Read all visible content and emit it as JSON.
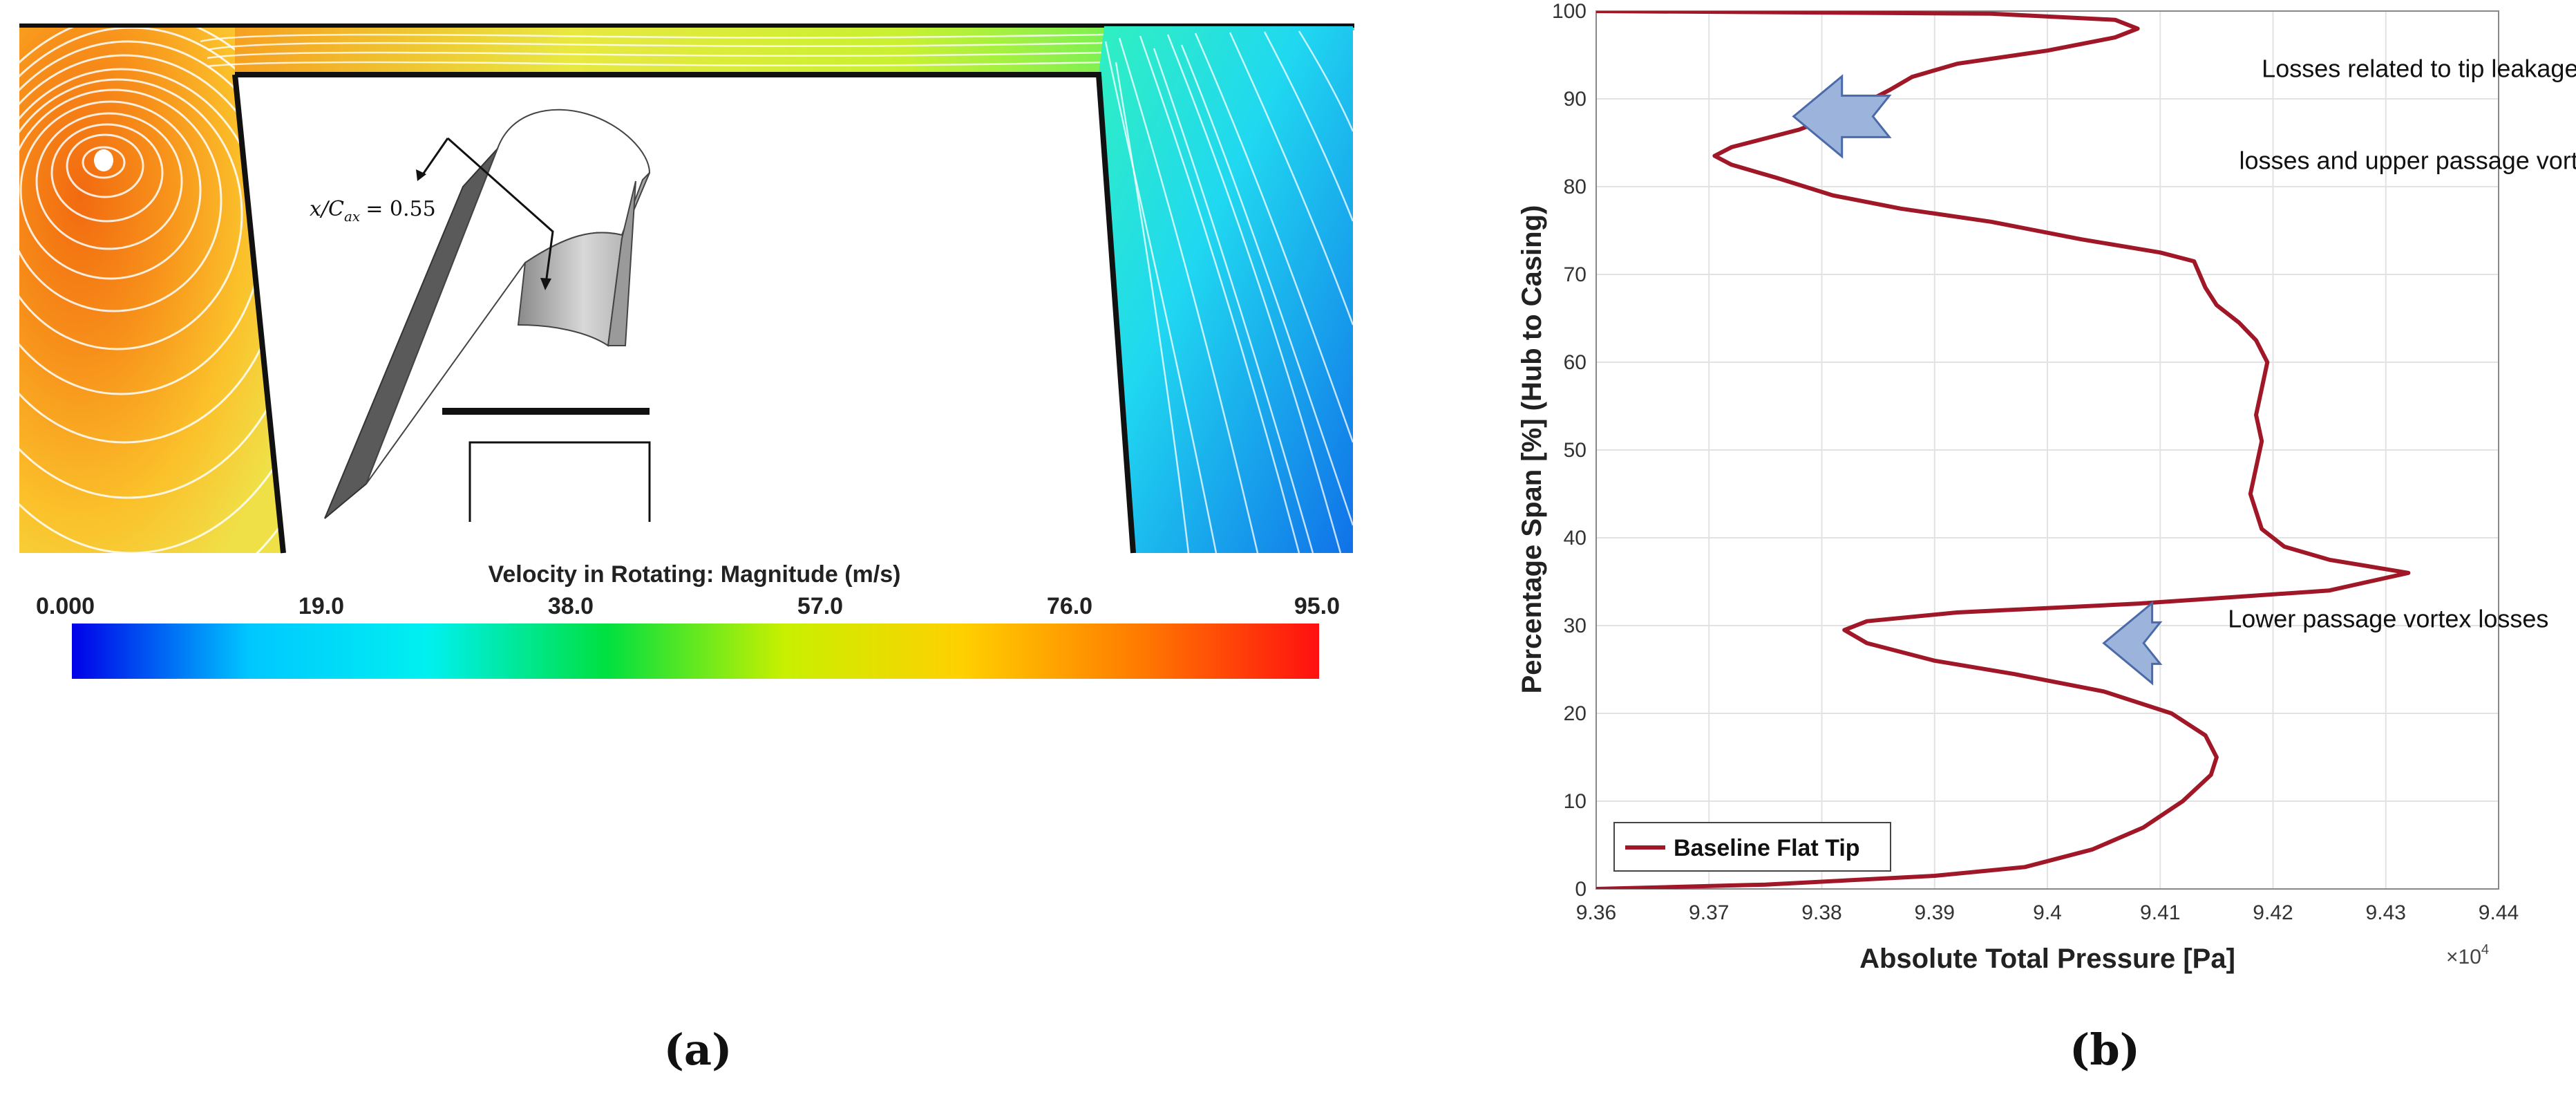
{
  "panel_a": {
    "label": "(a)",
    "inset_annotation": "x/C",
    "inset_annotation_sub": "ax",
    "inset_annotation_value": "= 0.55",
    "colorbar": {
      "title": "Velocity in Rotating: Magnitude (m/s)",
      "ticks": [
        "0.000",
        "19.0",
        "38.0",
        "57.0",
        "76.0",
        "95.0"
      ],
      "colors": [
        "#0000e8",
        "#00c8ff",
        "#00f0f0",
        "#00e040",
        "#c8f000",
        "#ffd000",
        "#ff7a00",
        "#ff1010"
      ]
    }
  },
  "panel_b": {
    "label": "(b)"
  },
  "chart_data": {
    "type": "line",
    "xlabel": "Absolute Total Pressure [Pa]",
    "ylabel": "Percentage Span [%] (Hub to Casing)",
    "x_multiplier": "×10",
    "x_multiplier_exp": "4",
    "xlim": [
      9.36,
      9.44
    ],
    "ylim": [
      0,
      100
    ],
    "xticks": [
      9.36,
      9.37,
      9.38,
      9.39,
      9.4,
      9.41,
      9.42,
      9.43,
      9.44
    ],
    "xtick_labels": [
      "9.36",
      "9.37",
      "9.38",
      "9.39",
      "9.4",
      "9.41",
      "9.42",
      "9.43",
      "9.44"
    ],
    "yticks": [
      0,
      10,
      20,
      30,
      40,
      50,
      60,
      70,
      80,
      90,
      100
    ],
    "ytick_labels": [
      "0",
      "10",
      "20",
      "30",
      "40",
      "50",
      "60",
      "70",
      "80",
      "90",
      "100"
    ],
    "grid": true,
    "legend_position": "bottom-left",
    "line_color": "#a01828",
    "arrow_color": "#9cb4dc",
    "series": [
      {
        "name": "Baseline Flat Tip",
        "points": [
          [
            9.36,
            0.0
          ],
          [
            9.375,
            0.5
          ],
          [
            9.39,
            1.5
          ],
          [
            9.398,
            2.5
          ],
          [
            9.404,
            4.5
          ],
          [
            9.4085,
            7.0
          ],
          [
            9.412,
            10.0
          ],
          [
            9.4145,
            13.0
          ],
          [
            9.415,
            15.0
          ],
          [
            9.414,
            17.5
          ],
          [
            9.411,
            20.0
          ],
          [
            9.405,
            22.5
          ],
          [
            9.397,
            24.5
          ],
          [
            9.39,
            26.0
          ],
          [
            9.384,
            28.0
          ],
          [
            9.382,
            29.5
          ],
          [
            9.384,
            30.5
          ],
          [
            9.392,
            31.5
          ],
          [
            9.408,
            32.5
          ],
          [
            9.425,
            34.0
          ],
          [
            9.432,
            36.0
          ],
          [
            9.425,
            37.5
          ],
          [
            9.421,
            39.0
          ],
          [
            9.419,
            41.0
          ],
          [
            9.4185,
            43.0
          ],
          [
            9.418,
            45.0
          ],
          [
            9.4185,
            48.0
          ],
          [
            9.419,
            51.0
          ],
          [
            9.4185,
            54.0
          ],
          [
            9.419,
            57.0
          ],
          [
            9.4195,
            60.0
          ],
          [
            9.4185,
            62.5
          ],
          [
            9.417,
            64.5
          ],
          [
            9.415,
            66.5
          ],
          [
            9.414,
            68.5
          ],
          [
            9.4135,
            70.0
          ],
          [
            9.413,
            71.5
          ],
          [
            9.41,
            72.5
          ],
          [
            9.403,
            74.0
          ],
          [
            9.395,
            76.0
          ],
          [
            9.387,
            77.5
          ],
          [
            9.381,
            79.0
          ],
          [
            9.376,
            81.0
          ],
          [
            9.372,
            82.5
          ],
          [
            9.3705,
            83.5
          ],
          [
            9.372,
            84.5
          ],
          [
            9.378,
            86.5
          ],
          [
            9.383,
            89.0
          ],
          [
            9.386,
            91.0
          ],
          [
            9.388,
            92.5
          ],
          [
            9.392,
            94.0
          ],
          [
            9.4,
            95.5
          ],
          [
            9.406,
            97.0
          ],
          [
            9.408,
            98.0
          ],
          [
            9.406,
            99.0
          ],
          [
            9.395,
            99.7
          ],
          [
            9.36,
            100.0
          ]
        ]
      }
    ],
    "annotations": [
      {
        "text": "Losses related to tip leakage",
        "x": 9.419,
        "y": 92.5,
        "anchor": "start"
      },
      {
        "text": "losses and upper passage vortex",
        "x": 9.417,
        "y": 82.0,
        "anchor": "start"
      },
      {
        "text": "Lower passage vortex losses",
        "x": 9.416,
        "y": 29.8,
        "anchor": "start"
      }
    ],
    "arrows": [
      {
        "tip_x": 9.3775,
        "tip_y": 88.0,
        "tail_x": 9.386,
        "direction": "left"
      },
      {
        "tip_x": 9.405,
        "tip_y": 28.0,
        "tail_x": 9.41,
        "direction": "left"
      }
    ]
  }
}
